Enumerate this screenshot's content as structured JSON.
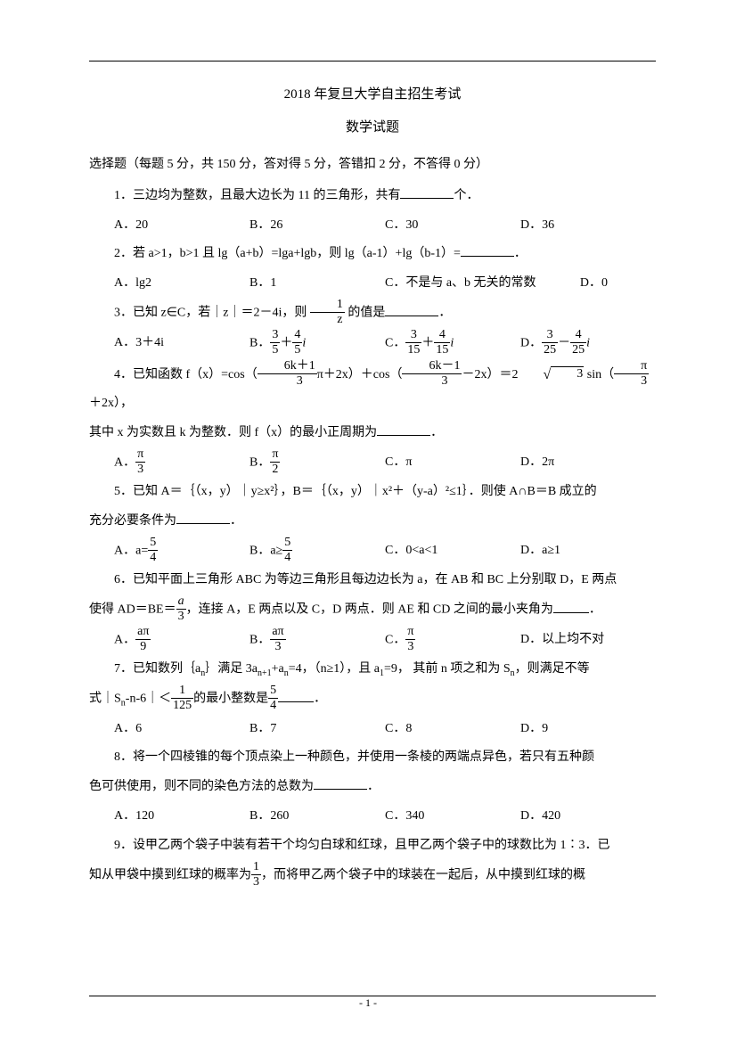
{
  "header": {
    "title1": "2018 年复旦大学自主招生考试",
    "title2": "数学试题"
  },
  "instructions": "选择题（每题 5 分，共 150 分，答对得 5 分，答错扣 2 分，不答得 0 分）",
  "questions": {
    "q1": {
      "text_pre": "1．三边均为整数，且最大边长为 11 的三角形，共有",
      "text_post": "个．",
      "opts": {
        "A": "A．20",
        "B": "B．26",
        "C": "C．30",
        "D": "D．36"
      }
    },
    "q2": {
      "text_pre": "2．若 a>1，b>1 且 lg（a+b）=lga+lgb，则 lg（a-1）+lg（b-1）=",
      "text_post": "．",
      "opts": {
        "A": "A．lg2",
        "B": "B．1",
        "C": "C．不是与 a、b 无关的常数",
        "D": "D．0"
      }
    },
    "q3": {
      "text_pre": "3．已知 z∈C，若｜z｜＝2－4i，则",
      "frac_n": "1",
      "frac_d": "z",
      "text_mid": "的值是",
      "text_post": "．",
      "optA": "A．3＋4i",
      "optB_pre": "B．",
      "optB_f1n": "3",
      "optB_f1d": "5",
      "optB_plus": "＋",
      "optB_f2n": "4",
      "optB_f2d": "5",
      "optB_i": "i",
      "optC_pre": "C．",
      "optC_f1n": "3",
      "optC_f1d": "15",
      "optC_plus": "＋",
      "optC_f2n": "4",
      "optC_f2d": "15",
      "optC_i": "i",
      "optD_pre": "D．",
      "optD_f1n": "3",
      "optD_f1d": "25",
      "optD_minus": "－",
      "optD_f2n": "4",
      "optD_f2d": "25",
      "optD_i": "i"
    },
    "q4": {
      "text_pre": "4．已知函数 f（x）=cos（",
      "f1n": "6k＋1",
      "f1d": "3",
      "rest1": "π＋2x）＋cos（",
      "f2n": "6k－1",
      "f2d": "3",
      "rest2": "－2x）＝2",
      "sqrt_arg": "3",
      "rest3": " sin（",
      "f3n": "π",
      "f3d": "3",
      "rest4": "＋2x），",
      "line2_pre": "其中 x 为实数且 k 为整数．则 f（x）的最小正周期为",
      "line2_post": "．",
      "optA_pre": "A．",
      "optA_n": "π",
      "optA_d": "3",
      "optB_pre": "B．",
      "optB_n": "π",
      "optB_d": "2",
      "optC": "C．π",
      "optD": "D．2π"
    },
    "q5": {
      "text": "5．已知 A＝｛（x，y）｜y≥x²｝，B＝｛（x，y）｜x²＋（y-a）²≤1｝．则使 A∩B＝B 成立的",
      "line2_pre": "充分必要条件为",
      "line2_post": "．",
      "optA_pre": "A．a=",
      "optA_n": "5",
      "optA_d": "4",
      "optB_pre": "B．a≥",
      "optB_n": "5",
      "optB_d": "4",
      "optC": "C．0<a<1",
      "optD": "D．a≥1"
    },
    "q6": {
      "text": "6．已知平面上三角形 ABC 为等边三角形且每边边长为 a，在 AB 和 BC 上分别取 D，E 两点",
      "line2_pre": "使得 AD＝BE＝",
      "line2_fn": "a",
      "line2_fd": "3",
      "line2_mid": "，连接 A，E 两点以及 C，D 两点．则 AE 和 CD 之间的最小夹角为",
      "line2_post": "．",
      "optA_pre": "A．",
      "optA_n": "aπ",
      "optA_d": "9",
      "optB_pre": "B．",
      "optB_n": "aπ",
      "optB_d": "3",
      "optC_pre": "C．",
      "optC_n": "π",
      "optC_d": "3",
      "optD": "D．以上均不对"
    },
    "q7": {
      "text_pre": "7．已知数列｛a",
      "text_sub1": "n",
      "text_mid1": "｝满足 3a",
      "text_sub2": "n+1",
      "text_mid2": "+a",
      "text_sub3": "n",
      "text_mid3": "=4，（n≥1），且 a",
      "text_sub4": "1",
      "text_mid4": "=9，  其前 n 项之和为 S",
      "text_sub5": "n",
      "text_post": "，则满足不等",
      "line2_pre": "式｜S",
      "line2_sub": "n",
      "line2_mid": "-n-6｜＜",
      "line2_fn": "1",
      "line2_fd": "125",
      "line2_mid2": "的最小整数是",
      "line2_f2n": "5",
      "line2_f2d": "4",
      "line2_post": "．",
      "opts": {
        "A": "A．6",
        "B": "B．7",
        "C": "C．8",
        "D": "D．9"
      }
    },
    "q8": {
      "text": "8．将一个四棱锥的每个顶点染上一种颜色，并使用一条棱的两端点异色，若只有五种颜",
      "line2_pre": "色可供使用，则不同的染色方法的总数为",
      "line2_post": "．",
      "opts": {
        "A": "A．120",
        "B": "B．260",
        "C": "C．340",
        "D": "D．420"
      }
    },
    "q9": {
      "text": "9．设甲乙两个袋子中装有若干个均匀白球和红球，且甲乙两个袋子中的球数比为 1∶3．已",
      "line2_pre": "知从甲袋中摸到红球的概率为",
      "line2_fn": "1",
      "line2_fd": "3",
      "line2_post": "，而将甲乙两个袋子中的球装在一起后，从中摸到红球的概"
    }
  },
  "footer": {
    "pagenum": "- 1 -"
  },
  "colors": {
    "text": "#000000",
    "background": "#ffffff",
    "line": "#000000"
  }
}
